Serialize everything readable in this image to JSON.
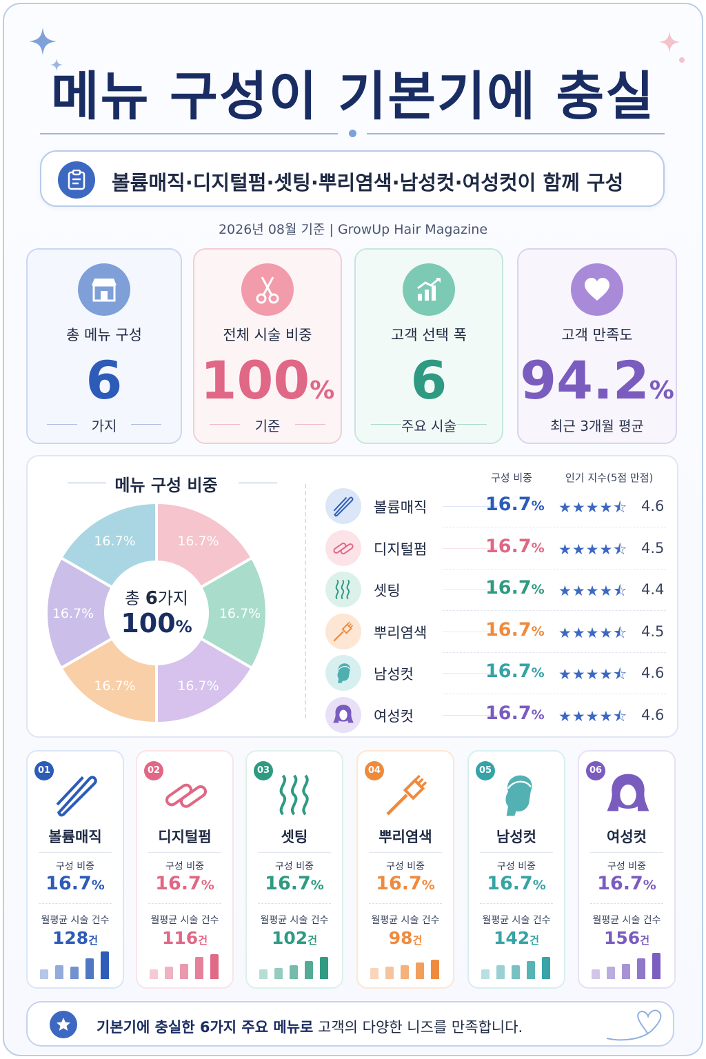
{
  "title": "메뉴 구성이 기본기에 충실",
  "subtitle": "볼륨매직·디지털펌·셋팅·뿌리염색·남성컷·여성컷이 함께 구성",
  "date_line": "2026년 08월 기준   |   GrowUp Hair Magazine",
  "kpis": [
    {
      "label": "총 메뉴 구성",
      "value": "6",
      "unit": "",
      "sub": "가지",
      "color": "#2c5bb8",
      "icon": "store-icon"
    },
    {
      "label": "전체 시술 비중",
      "value": "100",
      "unit": "%",
      "sub": "기준",
      "color": "#e06785",
      "icon": "scissors-icon"
    },
    {
      "label": "고객 선택 폭",
      "value": "6",
      "unit": "",
      "sub": "주요 시술",
      "color": "#2f9a82",
      "icon": "growth-chart-icon"
    },
    {
      "label": "고객 만족도",
      "value": "94.2",
      "unit": "%",
      "sub": "최근 3개월 평균",
      "color": "#7a5cbf",
      "icon": "heart-icon"
    }
  ],
  "donut": {
    "title": "메뉴 구성 비중",
    "center_line1_a": "총",
    "center_line1_b": "6",
    "center_line1_c": "가지",
    "center_line2": "100",
    "center_unit": "%"
  },
  "table": {
    "col_share": "구성 비중",
    "col_popularity": "인기 지수(5점 만점)"
  },
  "footer": {
    "bold": "기본기에 충실한 6가지 주요 메뉴로",
    "rest": " 고객의 다양한 니즈를 만족합니다."
  },
  "card_labels": {
    "share": "구성 비중",
    "monthly": "월평균 시술 건수",
    "count_unit": "건"
  },
  "chart_data": {
    "type": "pie",
    "title": "메뉴 구성 비중",
    "categories": [
      "볼륨매직",
      "디지털펌",
      "셋팅",
      "뿌리염색",
      "남성컷",
      "여성컷"
    ],
    "values": [
      16.7,
      16.7,
      16.7,
      16.7,
      16.7,
      16.7
    ],
    "value_labels": [
      "16.7%",
      "16.7%",
      "16.7%",
      "16.7%",
      "16.7%",
      "16.7%"
    ],
    "popularity": [
      4.6,
      4.5,
      4.4,
      4.5,
      4.6,
      4.6
    ],
    "monthly_count": [
      128,
      116,
      102,
      98,
      142,
      156
    ],
    "slice_colors": [
      "#f5c4cd",
      "#a9dccb",
      "#d6c2ec",
      "#f8cfa6",
      "#cbbfe9",
      "#a9d6e2"
    ],
    "items": [
      {
        "num": "01",
        "name": "볼륨매직",
        "pct": "16.7",
        "score": "4.6",
        "count": "128",
        "color": "#2c5bb8",
        "light": "#dbe6f8",
        "icon": "flat-iron-icon",
        "bars": [
          0.35,
          0.5,
          0.45,
          0.75,
          1.0
        ]
      },
      {
        "num": "02",
        "name": "디지털펌",
        "pct": "16.7",
        "score": "4.5",
        "count": "116",
        "color": "#e06785",
        "light": "#fbe3e8",
        "icon": "perm-rod-icon",
        "bars": [
          0.35,
          0.45,
          0.55,
          0.8,
          0.9
        ]
      },
      {
        "num": "03",
        "name": "셋팅",
        "pct": "16.7",
        "score": "4.4",
        "count": "102",
        "color": "#2f9a82",
        "light": "#dcf1ea",
        "icon": "wave-icon",
        "bars": [
          0.35,
          0.4,
          0.5,
          0.65,
          0.8
        ]
      },
      {
        "num": "04",
        "name": "뿌리염색",
        "pct": "16.7",
        "score": "4.5",
        "count": "98",
        "color": "#ef8a3c",
        "light": "#fde6d3",
        "icon": "dye-brush-icon",
        "bars": [
          0.4,
          0.45,
          0.5,
          0.6,
          0.7
        ]
      },
      {
        "num": "05",
        "name": "남성컷",
        "pct": "16.7",
        "score": "4.6",
        "count": "142",
        "color": "#36a3a6",
        "light": "#d8efef",
        "icon": "male-head-icon",
        "bars": [
          0.35,
          0.5,
          0.5,
          0.65,
          0.8
        ]
      },
      {
        "num": "06",
        "name": "여성컷",
        "pct": "16.7",
        "score": "4.6",
        "count": "156",
        "color": "#7a5cbf",
        "light": "#e8e0f6",
        "icon": "female-head-icon",
        "bars": [
          0.35,
          0.45,
          0.55,
          0.75,
          0.95
        ]
      }
    ]
  }
}
